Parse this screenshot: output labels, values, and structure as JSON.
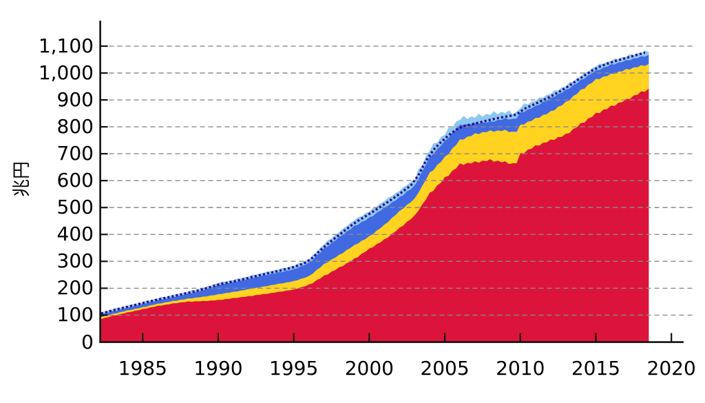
{
  "figure": {
    "background": "#ffffff",
    "grid_color": "#8a8a8a",
    "axis_color": "#111111"
  },
  "axes": {
    "y": {
      "unit_label": "兆円",
      "tick_values": [
        0,
        100,
        200,
        300,
        400,
        500,
        600,
        700,
        800,
        900,
        1000,
        1100
      ],
      "tick_labels": [
        "0",
        "100",
        "200",
        "300",
        "400",
        "500",
        "600",
        "700",
        "800",
        "900",
        "1,000",
        "1,100"
      ]
    },
    "x": {
      "tick_values": [
        1985,
        1990,
        1995,
        2000,
        2005,
        2010,
        2015,
        2020
      ],
      "tick_labels": [
        "1985",
        "1990",
        "1995",
        "2000",
        "2005",
        "2010",
        "2015",
        "2020"
      ]
    }
  },
  "chart_data": {
    "type": "area",
    "stacked": true,
    "title": "",
    "xlabel": "",
    "ylabel": "兆円",
    "legend": "none visible",
    "xlim": [
      1982.23,
      2020.9
    ],
    "ylim": [
      0,
      1180
    ],
    "grid": "dashed horizontal lines every 100, drawn over the areas",
    "values_unit": "兆円 (trillion yen)",
    "values_are": "cumulative stack tops read from the plot",
    "x_years": [
      1982.25,
      1983,
      1984,
      1985,
      1986,
      1987,
      1988,
      1989,
      1990,
      1991,
      1992,
      1993,
      1994,
      1995,
      1996,
      1997,
      1998,
      1999,
      2000,
      2001,
      2002,
      2003,
      2004,
      2005,
      2006,
      2007,
      2008,
      2009,
      2009.7,
      2010,
      2011,
      2012,
      2013,
      2014,
      2015,
      2016,
      2017,
      2018,
      2018.5
    ],
    "series": [
      {
        "name": "area-1-bottom-crimson",
        "color": "#DC143C",
        "cumulative_top": [
          86,
          97,
          110,
          122,
          134,
          143,
          150,
          152,
          156,
          163,
          170,
          178,
          186,
          195,
          212,
          245,
          276,
          308,
          346,
          380,
          423,
          469,
          551,
          609,
          660,
          668,
          676,
          668,
          660,
          698,
          728,
          749,
          770,
          810,
          848,
          875,
          900,
          928,
          940
        ]
      },
      {
        "name": "area-2-gold",
        "color": "#FFD320",
        "cumulative_top": [
          93,
          104,
          117,
          129,
          142,
          152,
          161,
          168,
          177,
          186,
          196,
          206,
          216,
          226,
          244,
          289,
          323,
          359,
          392,
          435,
          486,
          532,
          627,
          686,
          750,
          773,
          784,
          786,
          778,
          805,
          830,
          855,
          890,
          935,
          975,
          995,
          1012,
          1026,
          1032
        ]
      },
      {
        "name": "area-3-royal-blue",
        "color": "#4169E1",
        "cumulative_top": [
          102,
          114,
          127,
          141,
          155,
          166,
          179,
          192,
          211,
          222,
          234,
          247,
          258,
          270,
          293,
          346,
          389,
          430,
          461,
          499,
          537,
          580,
          686,
          746,
          806,
          812,
          818,
          830,
          828,
          851,
          876,
          906,
          935,
          972,
          1008,
          1030,
          1046,
          1060,
          1066
        ]
      },
      {
        "name": "area-4-top-light-blue",
        "color": "#8CC8F0",
        "cumulative_top": [
          110,
          122,
          135,
          148,
          163,
          174,
          187,
          200,
          220,
          231,
          244,
          258,
          270,
          284,
          307,
          364,
          409,
          453,
          486,
          525,
          563,
          606,
          716,
          775,
          830,
          838,
          848,
          855,
          850,
          873,
          898,
          924,
          952,
          988,
          1026,
          1046,
          1062,
          1076,
          1082
        ]
      }
    ],
    "total_line": {
      "name": "dotted-total-line",
      "style": "dotted",
      "color": "#2B0A8E",
      "values": [
        106,
        118,
        131,
        145,
        158,
        170,
        183,
        196,
        214,
        225,
        238,
        252,
        264,
        278,
        300,
        354,
        398,
        442,
        476,
        512,
        550,
        593,
        700,
        758,
        800,
        812,
        826,
        838,
        843,
        860,
        886,
        912,
        944,
        982,
        1018,
        1040,
        1056,
        1072,
        1080
      ]
    }
  }
}
